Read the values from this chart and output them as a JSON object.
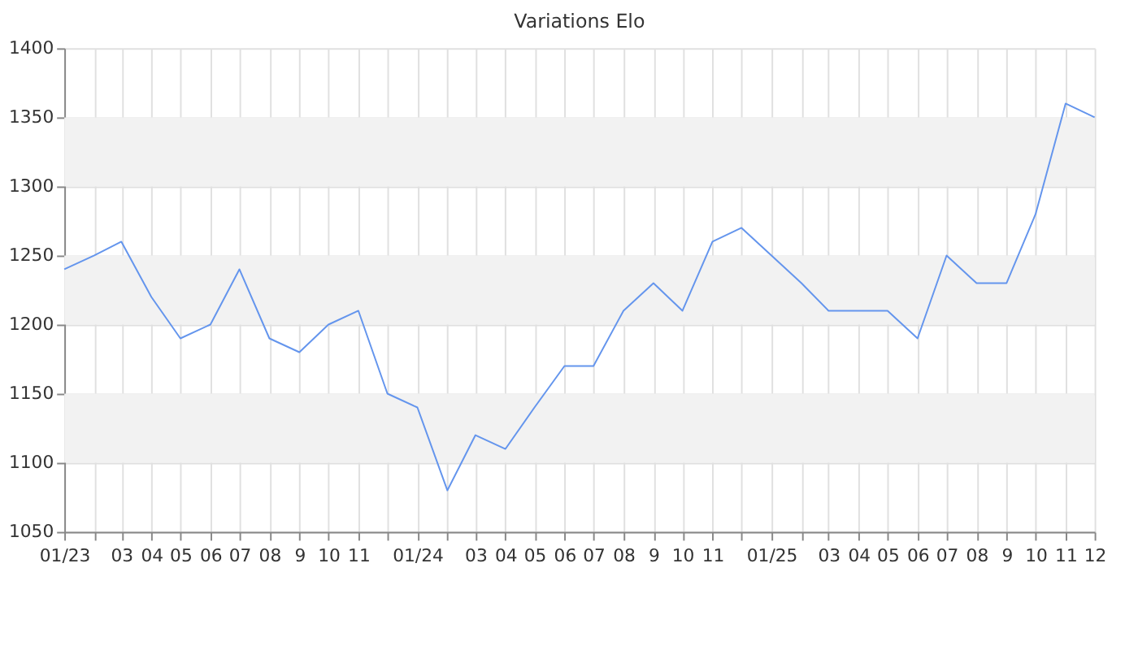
{
  "chart_data": {
    "type": "line",
    "title": "Variations Elo",
    "x": [
      "2023-01",
      "2023-02",
      "2023-03",
      "2023-04",
      "2023-05",
      "2023-06",
      "2023-07",
      "2023-08",
      "2023-09",
      "2023-10",
      "2023-11",
      "2023-12",
      "2024-01",
      "2024-02",
      "2024-03",
      "2024-04",
      "2024-05",
      "2024-06",
      "2024-07",
      "2024-08",
      "2024-09",
      "2024-10",
      "2024-11",
      "2024-12",
      "2025-01",
      "2025-02",
      "2025-03",
      "2025-04",
      "2025-05",
      "2025-06",
      "2025-07",
      "2025-08",
      "2025-09",
      "2025-10",
      "2025-11",
      "2025-12"
    ],
    "series": [
      {
        "color": "#6495ed",
        "values": [
          1240,
          1250,
          1260,
          1220,
          1190,
          1200,
          1240,
          1190,
          1180,
          1200,
          1210,
          1150,
          1140,
          1080,
          1120,
          1110,
          1140,
          1170,
          1170,
          1210,
          1230,
          1210,
          1260,
          1270,
          1250,
          1230,
          1210,
          1210,
          1210,
          1190,
          1250,
          1230,
          1230,
          1280,
          1360,
          1350
        ]
      }
    ],
    "xlim": [
      "2023-01",
      "2025-12"
    ],
    "xticks": [
      {
        "value": "2023-01",
        "label": "01/23"
      },
      {
        "value": "2023-02",
        "label": null
      },
      {
        "value": "2023-03",
        "label": "03"
      },
      {
        "value": "2023-04",
        "label": "04"
      },
      {
        "value": "2023-05",
        "label": "05"
      },
      {
        "value": "2023-06",
        "label": "06"
      },
      {
        "value": "2023-07",
        "label": "07"
      },
      {
        "value": "2023-08",
        "label": "08"
      },
      {
        "value": "2023-09",
        "label": "9"
      },
      {
        "value": "2023-10",
        "label": "10"
      },
      {
        "value": "2023-11",
        "label": "11"
      },
      {
        "value": "2023-12",
        "label": null
      },
      {
        "value": "2024-01",
        "label": "01/24"
      },
      {
        "value": "2024-02",
        "label": null
      },
      {
        "value": "2024-03",
        "label": "03"
      },
      {
        "value": "2024-04",
        "label": "04"
      },
      {
        "value": "2024-05",
        "label": "05"
      },
      {
        "value": "2024-06",
        "label": "06"
      },
      {
        "value": "2024-07",
        "label": "07"
      },
      {
        "value": "2024-08",
        "label": "08"
      },
      {
        "value": "2024-09",
        "label": "9"
      },
      {
        "value": "2024-10",
        "label": "10"
      },
      {
        "value": "2024-11",
        "label": "11"
      },
      {
        "value": "2024-12",
        "label": null
      },
      {
        "value": "2025-01",
        "label": "01/25"
      },
      {
        "value": "2025-02",
        "label": null
      },
      {
        "value": "2025-03",
        "label": "03"
      },
      {
        "value": "2025-04",
        "label": "04"
      },
      {
        "value": "2025-05",
        "label": "05"
      },
      {
        "value": "2025-06",
        "label": "06"
      },
      {
        "value": "2025-07",
        "label": "07"
      },
      {
        "value": "2025-08",
        "label": "08"
      },
      {
        "value": "2025-09",
        "label": "9"
      },
      {
        "value": "2025-10",
        "label": "10"
      },
      {
        "value": "2025-11",
        "label": "11"
      },
      {
        "value": "2025-12",
        "label": "12"
      }
    ],
    "ylim": [
      1050,
      1400
    ],
    "yticks": [
      1050,
      1100,
      1150,
      1200,
      1250,
      1300,
      1350,
      1400
    ],
    "bands": [
      {
        "axis": "y",
        "from": 1100,
        "to": 1150,
        "color": "#f2f2f2"
      },
      {
        "axis": "y",
        "from": 1200,
        "to": 1250,
        "color": "#f2f2f2"
      },
      {
        "axis": "y",
        "from": 1300,
        "to": 1350,
        "color": "#f2f2f2"
      }
    ],
    "grid": true,
    "marker": "none",
    "line_style": "solid"
  }
}
